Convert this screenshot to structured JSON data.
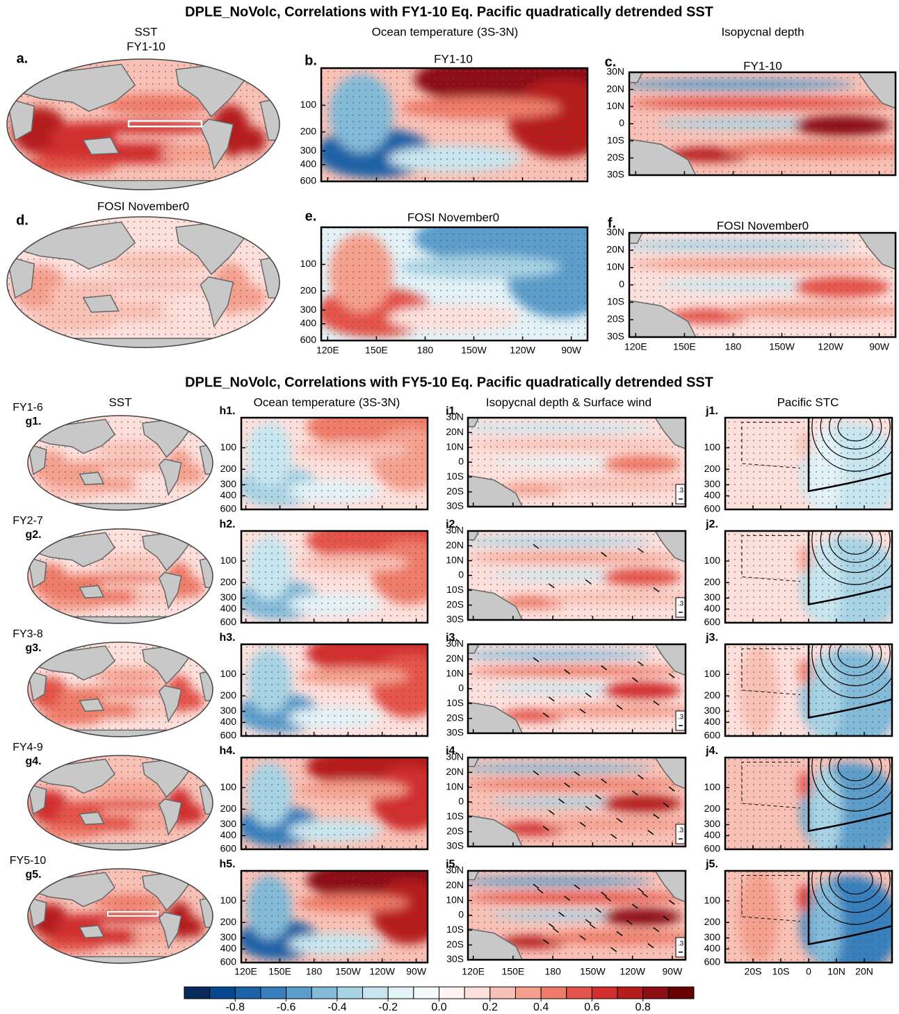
{
  "top": {
    "title": "DPLE_NoVolc, Correlations with FY1-10 Eq. Pacific quadratically detrended SST",
    "column_titles": [
      "SST",
      "Ocean temperature (3S-3N)",
      "Isopycnal depth"
    ],
    "sst_subtitle": "FY1-10",
    "panels": [
      {
        "label": "a."
      },
      {
        "label": "b.",
        "title": "FY1-10"
      },
      {
        "label": "c.",
        "title": "FY1-10"
      },
      {
        "label": "d.",
        "title": "FOSI November0"
      },
      {
        "label": "e.",
        "title": "FOSI November0"
      },
      {
        "label": "f.",
        "title": "FOSI November0"
      }
    ]
  },
  "bottom": {
    "title": "DPLE_NoVolc, Correlations with FY5-10 Eq. Pacific quadratically detrended SST",
    "column_titles": [
      "SST",
      "Ocean temperature (3S-3N)",
      "Isopycnal depth & Surface wind",
      "Pacific STC"
    ],
    "rows": [
      {
        "lead": "FY1-6",
        "labels": [
          "g1.",
          "h1.",
          "i1.",
          "j1."
        ]
      },
      {
        "lead": "FY2-7",
        "labels": [
          "g2.",
          "h2.",
          "i2.",
          "j2."
        ]
      },
      {
        "lead": "FY3-8",
        "labels": [
          "g3.",
          "h3.",
          "i3.",
          "j3."
        ]
      },
      {
        "lead": "FY4-9",
        "labels": [
          "g4.",
          "h4.",
          "i4.",
          "j4."
        ]
      },
      {
        "lead": "FY5-10",
        "labels": [
          "g5.",
          "h5.",
          "i5.",
          "j5."
        ]
      }
    ],
    "wind_reference": ".3"
  },
  "axes": {
    "depth": {
      "ylim": [
        0,
        600
      ],
      "yticks": [
        100,
        200,
        300,
        400,
        600
      ]
    },
    "lat": {
      "ylim": [
        -30,
        30
      ],
      "yticks": [
        {
          "value": 30,
          "label": "30N"
        },
        {
          "value": 20,
          "label": "20N"
        },
        {
          "value": 10,
          "label": "10N"
        },
        0,
        {
          "value": -10,
          "label": "10S"
        },
        {
          "value": -20,
          "label": "20S"
        },
        {
          "value": -30,
          "label": "30S"
        }
      ]
    },
    "lon": {
      "xlim": [
        116,
        280
      ],
      "xticks": [
        {
          "value": 120,
          "label": "120E"
        },
        {
          "value": 150,
          "label": "150E"
        },
        180,
        {
          "value": 210,
          "label": "150W"
        },
        {
          "value": 240,
          "label": "120W"
        },
        {
          "value": 270,
          "label": "90W"
        }
      ]
    },
    "stc_lat": {
      "xlim": [
        -30,
        30
      ],
      "xticks": [
        {
          "value": -20,
          "label": "20S"
        },
        {
          "value": -10,
          "label": "10S"
        },
        0,
        {
          "value": 10,
          "label": "10N"
        },
        {
          "value": 20,
          "label": "20N"
        }
      ]
    }
  },
  "colorbar": {
    "clim": [
      -1,
      1
    ],
    "colors": [
      "#0a2a5c",
      "#08468f",
      "#1c62a8",
      "#3880bd",
      "#5b9dcb",
      "#82bad8",
      "#a8d3e4",
      "#c8e6ef",
      "#e3f2f7",
      "#f5fbfd",
      "#fff4f2",
      "#fde0dc",
      "#f9c1b6",
      "#f5a08f",
      "#ef7b69",
      "#e5534a",
      "#d32f2f",
      "#b71c1c",
      "#8e1016",
      "#660000"
    ],
    "ticks": [
      -0.8,
      -0.6,
      -0.4,
      -0.2,
      {
        "value": 0,
        "label": "0.0"
      },
      0.2,
      0.4,
      0.6,
      0.8
    ]
  }
}
